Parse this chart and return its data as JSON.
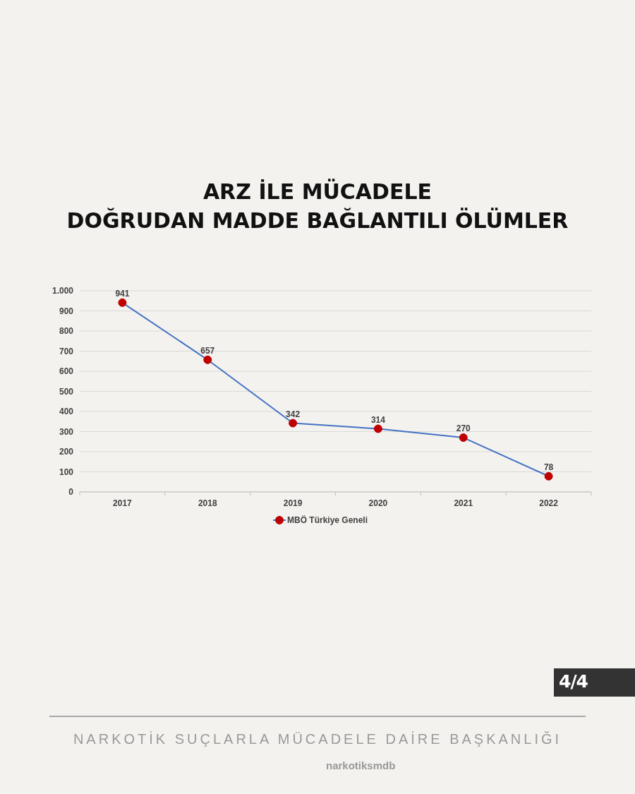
{
  "chart_data": {
    "type": "line",
    "title": "ARZ İLE MÜCADELE\nDOĞRUDAN MADDE BAĞLANTILI ÖLÜMLER",
    "categories": [
      "2017",
      "2018",
      "2019",
      "2020",
      "2021",
      "2022"
    ],
    "series": [
      {
        "name": "MBÖ Türkiye Geneli",
        "color": "#4472c4",
        "colors": [
          "#c00000",
          "#c00000",
          "#c00000",
          "#c00000",
          "#c00000",
          "#c00000"
        ],
        "values": [
          941,
          657,
          342,
          314,
          270,
          78
        ]
      }
    ],
    "ylim": [
      0,
      1000
    ],
    "yticks": [
      0,
      100,
      200,
      300,
      400,
      500,
      600,
      700,
      800,
      900,
      {
        "value": 1000,
        "label": "1.000"
      }
    ],
    "grid": "y",
    "legend": "bottom",
    "marker": "circle",
    "line_style": "solid",
    "data_labels": true,
    "annotations": [
      "4/4",
      "NARKOTİK SUÇLARLA MÜCADELE DAİRE BAŞKANLIĞI",
      "narkotiksmdb"
    ]
  }
}
